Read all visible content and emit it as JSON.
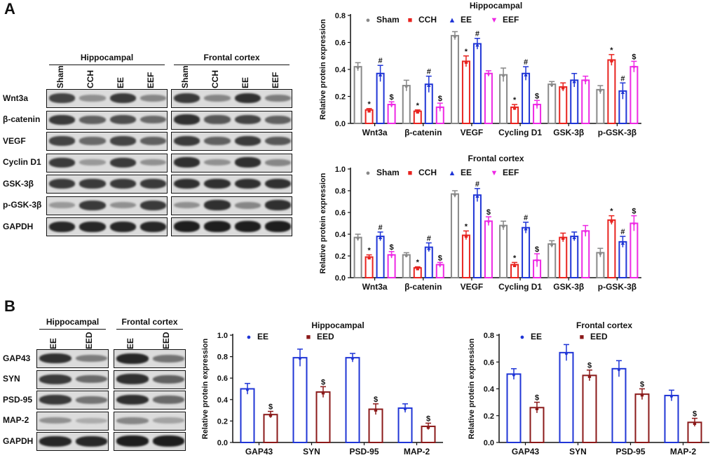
{
  "panel_a": {
    "label": "A",
    "blots": {
      "groups": [
        "Hippocampal",
        "Frontal cortex"
      ],
      "lanes": [
        "Sham",
        "CCH",
        "EE",
        "EEF"
      ],
      "rows": [
        {
          "label": "Wnt3a",
          "intensity": [
            0.75,
            0.35,
            0.8,
            0.4
          ]
        },
        {
          "label": "β-catenin",
          "intensity": [
            0.8,
            0.6,
            0.7,
            0.55
          ]
        },
        {
          "label": "VEGF",
          "intensity": [
            0.75,
            0.55,
            0.75,
            0.6
          ]
        },
        {
          "label": "Cyclin D1",
          "intensity": [
            0.8,
            0.3,
            0.8,
            0.35
          ]
        },
        {
          "label": "GSK-3β",
          "intensity": [
            0.8,
            0.8,
            0.8,
            0.8
          ]
        },
        {
          "label": "p-GSK-3β",
          "intensity": [
            0.3,
            0.8,
            0.35,
            0.8
          ]
        },
        {
          "label": "GAPDH",
          "intensity": [
            0.9,
            0.9,
            0.9,
            0.9
          ]
        }
      ]
    }
  },
  "panel_b": {
    "label": "B",
    "blots": {
      "groups": [
        "Hippocampal",
        "Frontal cortex"
      ],
      "lanes": [
        "EE",
        "EED"
      ],
      "rows": [
        {
          "label": "GAP43",
          "intensity": [
            0.85,
            0.45
          ]
        },
        {
          "label": "SYN",
          "intensity": [
            0.8,
            0.55
          ]
        },
        {
          "label": "PSD-95",
          "intensity": [
            0.8,
            0.5
          ]
        },
        {
          "label": "MAP-2",
          "intensity": [
            0.35,
            0.2
          ]
        },
        {
          "label": "GAPDH",
          "intensity": [
            0.9,
            0.9
          ]
        }
      ]
    }
  },
  "chart_data": [
    {
      "type": "bar",
      "title": "Hippocampal",
      "ylabel": "Relative protein expression",
      "xlabel": "",
      "ylim": [
        0,
        0.8
      ],
      "yticks": [
        "0.0",
        "0.2",
        "0.4",
        "0.6",
        "0.8"
      ],
      "categories": [
        "Wnt3a",
        "β-catenin",
        "VEGF",
        "Cycling D1",
        "GSK-3β",
        "p-GSK-3β"
      ],
      "series": [
        {
          "name": "Sham",
          "color": "#888888",
          "marker": "●",
          "values": [
            0.42,
            0.28,
            0.65,
            0.36,
            0.29,
            0.25
          ],
          "err": [
            0.03,
            0.04,
            0.03,
            0.05,
            0.02,
            0.03
          ],
          "sig": [
            "",
            "",
            "",
            "",
            "",
            ""
          ]
        },
        {
          "name": "CCH",
          "color": "#e8231f",
          "marker": "■",
          "values": [
            0.1,
            0.09,
            0.46,
            0.12,
            0.27,
            0.47
          ],
          "err": [
            0.01,
            0.01,
            0.04,
            0.02,
            0.03,
            0.04
          ],
          "sig": [
            "*",
            "*",
            "*",
            "*",
            "",
            "*"
          ]
        },
        {
          "name": "EE",
          "color": "#1f35d6",
          "marker": "▲",
          "values": [
            0.37,
            0.29,
            0.59,
            0.37,
            0.32,
            0.24
          ],
          "err": [
            0.06,
            0.06,
            0.04,
            0.05,
            0.05,
            0.06
          ],
          "sig": [
            "#",
            "#",
            "#",
            "#",
            "",
            "#"
          ]
        },
        {
          "name": "EEF",
          "color": "#ee28e4",
          "marker": "▼",
          "values": [
            0.14,
            0.12,
            0.37,
            0.14,
            0.32,
            0.42
          ],
          "err": [
            0.02,
            0.03,
            0.02,
            0.03,
            0.03,
            0.04
          ],
          "sig": [
            "$",
            "$",
            "",
            "$",
            "",
            "$"
          ]
        }
      ]
    },
    {
      "type": "bar",
      "title": "Frontal cortex",
      "ylabel": "Relative protein expression",
      "xlabel": "",
      "ylim": [
        0,
        1.0
      ],
      "yticks": [
        "0.0",
        "0.2",
        "0.4",
        "0.6",
        "0.8",
        "1.0"
      ],
      "categories": [
        "Wnt3a",
        "β-catenin",
        "VEGF",
        "Cycling D1",
        "GSK-3β",
        "p-GSK-3β"
      ],
      "series": [
        {
          "name": "Sham",
          "color": "#888888",
          "marker": "●",
          "values": [
            0.37,
            0.21,
            0.77,
            0.48,
            0.31,
            0.23
          ],
          "err": [
            0.03,
            0.02,
            0.03,
            0.04,
            0.03,
            0.04
          ],
          "sig": [
            "",
            "",
            "",
            "",
            "",
            ""
          ]
        },
        {
          "name": "CCH",
          "color": "#e8231f",
          "marker": "■",
          "values": [
            0.19,
            0.09,
            0.39,
            0.12,
            0.37,
            0.53
          ],
          "err": [
            0.02,
            0.01,
            0.04,
            0.02,
            0.04,
            0.04
          ],
          "sig": [
            "*",
            "*",
            "*",
            "*",
            "",
            "*"
          ]
        },
        {
          "name": "EE",
          "color": "#1f35d6",
          "marker": "▲",
          "values": [
            0.38,
            0.28,
            0.76,
            0.46,
            0.38,
            0.33
          ],
          "err": [
            0.04,
            0.04,
            0.06,
            0.05,
            0.04,
            0.05
          ],
          "sig": [
            "#",
            "#",
            "#",
            "#",
            "",
            "#"
          ]
        },
        {
          "name": "EEF",
          "color": "#ee28e4",
          "marker": "▼",
          "values": [
            0.21,
            0.12,
            0.52,
            0.16,
            0.43,
            0.5
          ],
          "err": [
            0.03,
            0.02,
            0.04,
            0.06,
            0.05,
            0.07
          ],
          "sig": [
            "$",
            "$",
            "$",
            "$",
            "",
            "$"
          ]
        }
      ]
    },
    {
      "type": "bar",
      "title": "Hippocampal",
      "ylabel": "Relative protein expression",
      "xlabel": "",
      "ylim": [
        0,
        1.0
      ],
      "yticks": [
        "0.0",
        "0.2",
        "0.4",
        "0.6",
        "0.8",
        "1.0"
      ],
      "categories": [
        "GAP43",
        "SYN",
        "PSD-95",
        "MAP-2"
      ],
      "series": [
        {
          "name": "EE",
          "color": "#1f35d6",
          "marker": "●",
          "values": [
            0.5,
            0.79,
            0.79,
            0.32
          ],
          "err": [
            0.05,
            0.08,
            0.04,
            0.04
          ],
          "sig": [
            "",
            "",
            "",
            ""
          ]
        },
        {
          "name": "EED",
          "color": "#8b1a1a",
          "marker": "■",
          "values": [
            0.26,
            0.47,
            0.31,
            0.15
          ],
          "err": [
            0.03,
            0.05,
            0.05,
            0.03
          ],
          "sig": [
            "$",
            "$",
            "$",
            "$"
          ]
        }
      ]
    },
    {
      "type": "bar",
      "title": "Frontal cortex",
      "ylabel": "Relative protein expression",
      "xlabel": "",
      "ylim": [
        0,
        0.8
      ],
      "yticks": [
        "0.0",
        "0.2",
        "0.4",
        "0.6",
        "0.8"
      ],
      "categories": [
        "GAP43",
        "SYN",
        "PSD-95",
        "MAP-2"
      ],
      "series": [
        {
          "name": "EE",
          "color": "#1f35d6",
          "marker": "●",
          "values": [
            0.51,
            0.67,
            0.55,
            0.35
          ],
          "err": [
            0.04,
            0.06,
            0.06,
            0.04
          ],
          "sig": [
            "",
            "",
            "",
            ""
          ]
        },
        {
          "name": "EED",
          "color": "#8b1a1a",
          "marker": "■",
          "values": [
            0.26,
            0.5,
            0.36,
            0.15
          ],
          "err": [
            0.04,
            0.04,
            0.04,
            0.03
          ],
          "sig": [
            "$",
            "$",
            "$",
            "$"
          ]
        }
      ]
    }
  ]
}
